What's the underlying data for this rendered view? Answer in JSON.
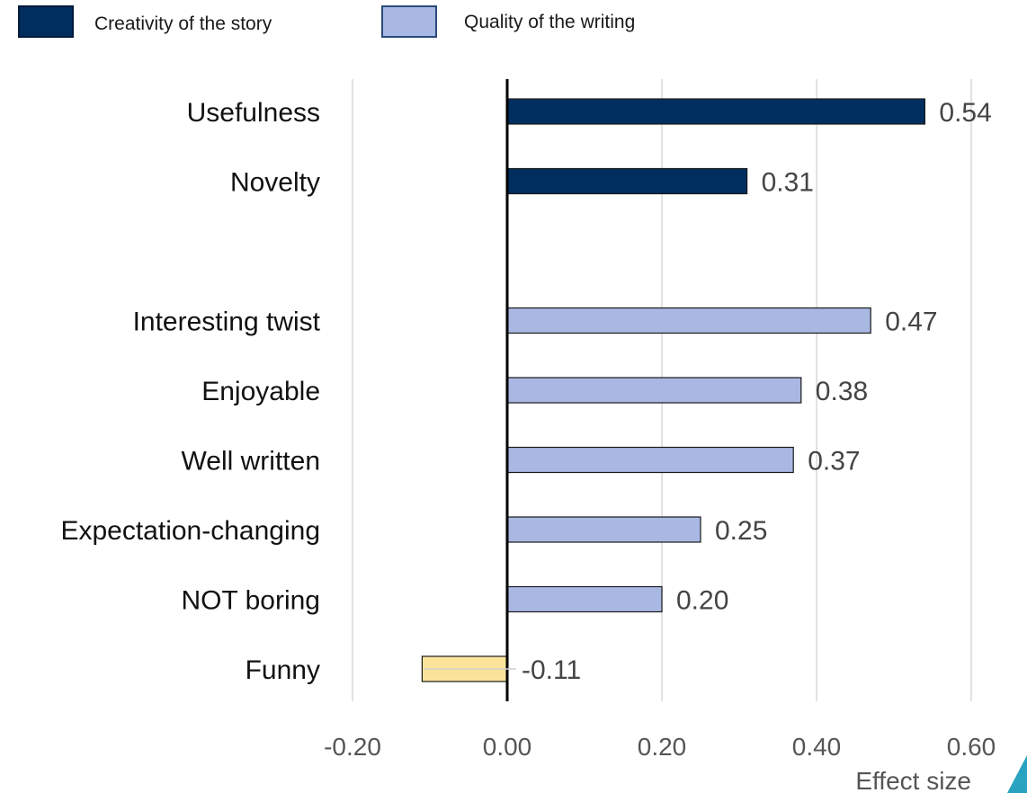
{
  "legend": {
    "items": [
      {
        "label": "Creativity of the story",
        "color": "#002e5f",
        "border": "#001a3a"
      },
      {
        "label": "Quality of the writing",
        "color": "#a8b8e2",
        "border": "#2a4a7a"
      }
    ]
  },
  "chart_data": {
    "type": "bar",
    "orientation": "horizontal",
    "xlabel": "Effect size",
    "ylabel": "",
    "xlim": [
      -0.2,
      0.6
    ],
    "xticks": [
      -0.2,
      0.0,
      0.2,
      0.4,
      0.6
    ],
    "xtick_labels": [
      "-0.20",
      "0.00",
      "0.20",
      "0.40",
      "0.60"
    ],
    "grid": "vertical",
    "legend_position": "top-left",
    "categories": [
      "Usefulness",
      "Novelty",
      "",
      "Interesting twist",
      "Enjoyable",
      "Well written",
      "Expectation-changing",
      "NOT boring",
      "Funny"
    ],
    "bars": [
      {
        "category": "Usefulness",
        "value": 0.54,
        "label": "0.54",
        "group": "Creativity of the story",
        "color": "#002e5f"
      },
      {
        "category": "Novelty",
        "value": 0.31,
        "label": "0.31",
        "group": "Creativity of the story",
        "color": "#002e5f"
      },
      {
        "category": "Interesting twist",
        "value": 0.47,
        "label": "0.47",
        "group": "Quality of the writing",
        "color": "#a8b8e2"
      },
      {
        "category": "Enjoyable",
        "value": 0.38,
        "label": "0.38",
        "group": "Quality of the writing",
        "color": "#a8b8e2"
      },
      {
        "category": "Well written",
        "value": 0.37,
        "label": "0.37",
        "group": "Quality of the writing",
        "color": "#a8b8e2"
      },
      {
        "category": "Expectation-changing",
        "value": 0.25,
        "label": "0.25",
        "group": "Quality of the writing",
        "color": "#a8b8e2"
      },
      {
        "category": "NOT boring",
        "value": 0.2,
        "label": "0.20",
        "group": "Quality of the writing",
        "color": "#a8b8e2"
      },
      {
        "category": "Funny",
        "value": -0.11,
        "label": "-0.11",
        "group": "",
        "color": "#fbe49a"
      }
    ]
  }
}
